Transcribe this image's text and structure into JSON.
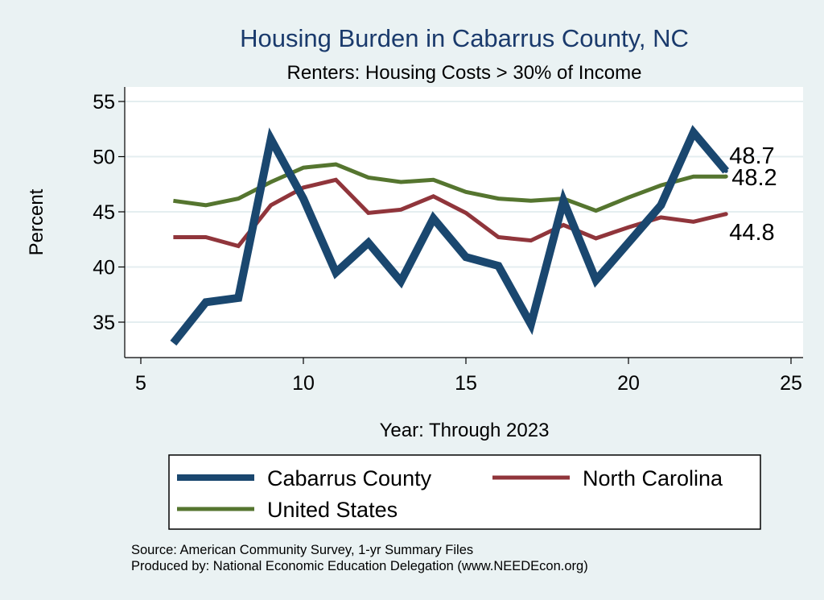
{
  "chart_data": {
    "type": "line",
    "title": "Housing Burden in Cabarrus County, NC",
    "subtitle": "Renters: Housing Costs > 30% of Income",
    "xlabel": "Year: Through 2023",
    "ylabel": "Percent",
    "xlim": [
      5,
      25
    ],
    "ylim": [
      32,
      56
    ],
    "xticks": [
      5,
      10,
      15,
      20,
      25
    ],
    "yticks": [
      35,
      40,
      45,
      50,
      55
    ],
    "grid": true,
    "legend_position": "bottom",
    "x": [
      6,
      7,
      8,
      9,
      10,
      11,
      12,
      13,
      14,
      15,
      16,
      17,
      18,
      19,
      20,
      21,
      22,
      23
    ],
    "series": [
      {
        "name": "Cabarrus County",
        "color": "#1a476f",
        "values": [
          33.1,
          36.8,
          37.2,
          51.6,
          46.2,
          39.5,
          42.2,
          38.7,
          44.4,
          40.9,
          40.1,
          34.8,
          46.0,
          38.8,
          42.2,
          45.6,
          52.2,
          48.7
        ],
        "end_label": "48.7"
      },
      {
        "name": "North Carolina",
        "color": "#90353b",
        "values": [
          42.7,
          42.7,
          41.9,
          45.6,
          47.2,
          47.9,
          44.9,
          45.2,
          46.4,
          44.9,
          42.7,
          42.4,
          43.8,
          42.6,
          43.6,
          44.5,
          44.1,
          44.8
        ],
        "end_label": "44.8"
      },
      {
        "name": "United States",
        "color": "#55752f",
        "values": [
          46.0,
          45.6,
          46.2,
          47.7,
          49.0,
          49.3,
          48.1,
          47.7,
          47.9,
          46.8,
          46.2,
          46.0,
          46.2,
          45.1,
          46.3,
          47.4,
          48.2,
          48.2
        ],
        "end_label": "48.2"
      }
    ]
  },
  "legend": {
    "items": [
      {
        "label": "Cabarrus County",
        "color": "#1a476f"
      },
      {
        "label": "North Carolina",
        "color": "#90353b"
      },
      {
        "label": "United States",
        "color": "#55752f"
      }
    ]
  },
  "notes": {
    "source": "Source: American Community Survey, 1-yr Summary Files",
    "produced_by": "Produced by: National Economic Education Delegation (www.NEEDEcon.org)"
  }
}
